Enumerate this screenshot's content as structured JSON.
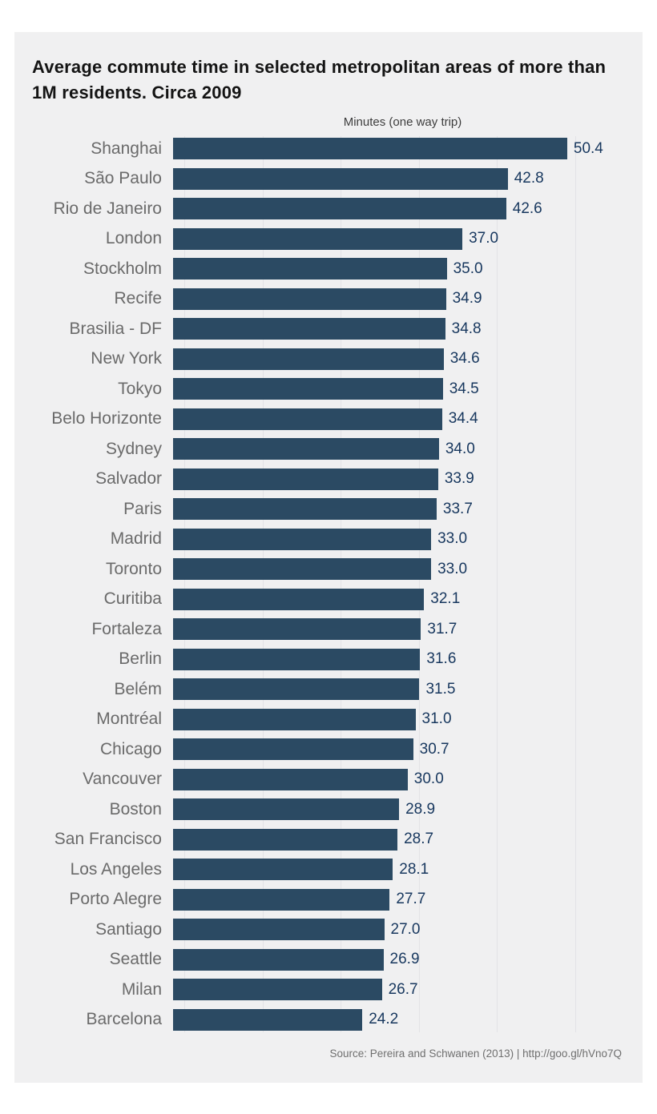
{
  "chart": {
    "title": "Average commute time in selected metropolitan areas of more than 1M residents. Circa 2009",
    "subtitle": "Minutes (one way trip)",
    "source": "Source: Pereira and Schwanen (2013) | http://goo.gl/hVno7Q"
  },
  "chart_data": {
    "type": "bar",
    "orientation": "horizontal",
    "title": "Average commute time in selected metropolitan areas of more than 1M residents. Circa 2009",
    "xlabel": "Minutes (one way trip)",
    "ylabel": "",
    "xlim": [
      0,
      55
    ],
    "grid": "vertical gridlines every 10 minutes",
    "legend": "none",
    "value_labels": "end of each bar, one decimal place",
    "categories": [
      "Shanghai",
      "São Paulo",
      "Rio de Janeiro",
      "London",
      "Stockholm",
      "Recife",
      "Brasilia - DF",
      "New York",
      "Tokyo",
      "Belo Horizonte",
      "Sydney",
      "Salvador",
      "Paris",
      "Madrid",
      "Toronto",
      "Curitiba",
      "Fortaleza",
      "Berlin",
      "Belém",
      "Montréal",
      "Chicago",
      "Vancouver",
      "Boston",
      "San Francisco",
      "Los Angeles",
      "Porto Alegre",
      "Santiago",
      "Seattle",
      "Milan",
      "Barcelona"
    ],
    "values": [
      50.4,
      42.8,
      42.6,
      37.0,
      35.0,
      34.9,
      34.8,
      34.6,
      34.5,
      34.4,
      34.0,
      33.9,
      33.7,
      33.0,
      33.0,
      32.1,
      31.7,
      31.6,
      31.5,
      31.0,
      30.7,
      30.0,
      28.9,
      28.7,
      28.1,
      27.7,
      27.0,
      26.9,
      26.7,
      24.2
    ],
    "source": "Source: Pereira and Schwanen (2013) | http://goo.gl/hVno7Q"
  },
  "colors": {
    "bar": "#2b4a63",
    "value_label": "#17375e",
    "category_label": "#6a6a6a",
    "panel_background": "#f0f0f1",
    "page_background": "#ffffff",
    "gridline": "#e3e3e6",
    "title_text": "#141414"
  }
}
